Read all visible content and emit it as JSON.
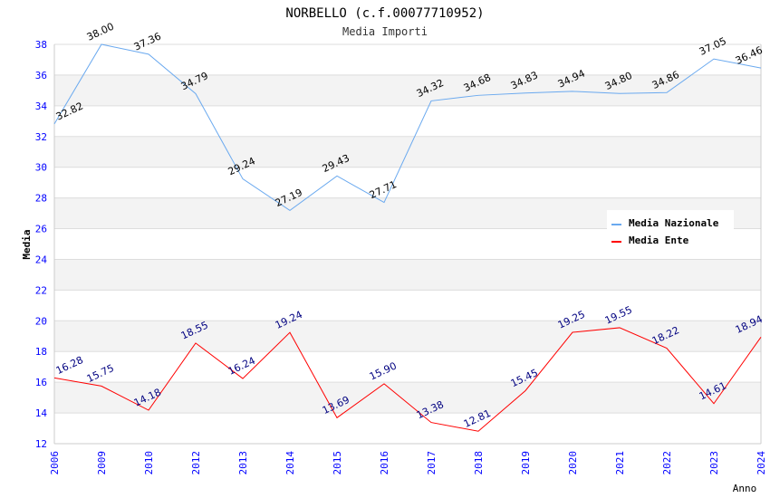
{
  "chart_data": {
    "type": "line",
    "title": "NORBELLO (c.f.00077710952)",
    "subtitle": "Media Importi",
    "xlabel": "Anno",
    "ylabel": "Media",
    "ylim": [
      12,
      38
    ],
    "yticks": [
      12,
      14,
      16,
      18,
      20,
      22,
      24,
      26,
      28,
      30,
      32,
      34,
      36,
      38
    ],
    "categories": [
      "2006",
      "2009",
      "2010",
      "2012",
      "2013",
      "2014",
      "2015",
      "2016",
      "2017",
      "2018",
      "2019",
      "2020",
      "2021",
      "2022",
      "2023",
      "2024"
    ],
    "grid": true,
    "legend_position": "top-right",
    "series": [
      {
        "name": "Media Nazionale",
        "color": "#6aa9ef",
        "label_color": "#000000",
        "values": [
          32.82,
          38.0,
          37.36,
          34.79,
          29.24,
          27.19,
          29.43,
          27.71,
          34.32,
          34.68,
          34.83,
          34.94,
          34.8,
          34.86,
          37.05,
          36.46
        ]
      },
      {
        "name": "Media Ente",
        "color": "#ff0000",
        "label_color": "#000080",
        "values": [
          16.28,
          15.75,
          14.18,
          18.55,
          16.24,
          19.24,
          13.69,
          15.9,
          13.38,
          12.81,
          15.45,
          19.25,
          19.55,
          18.22,
          14.61,
          18.94
        ]
      }
    ]
  }
}
